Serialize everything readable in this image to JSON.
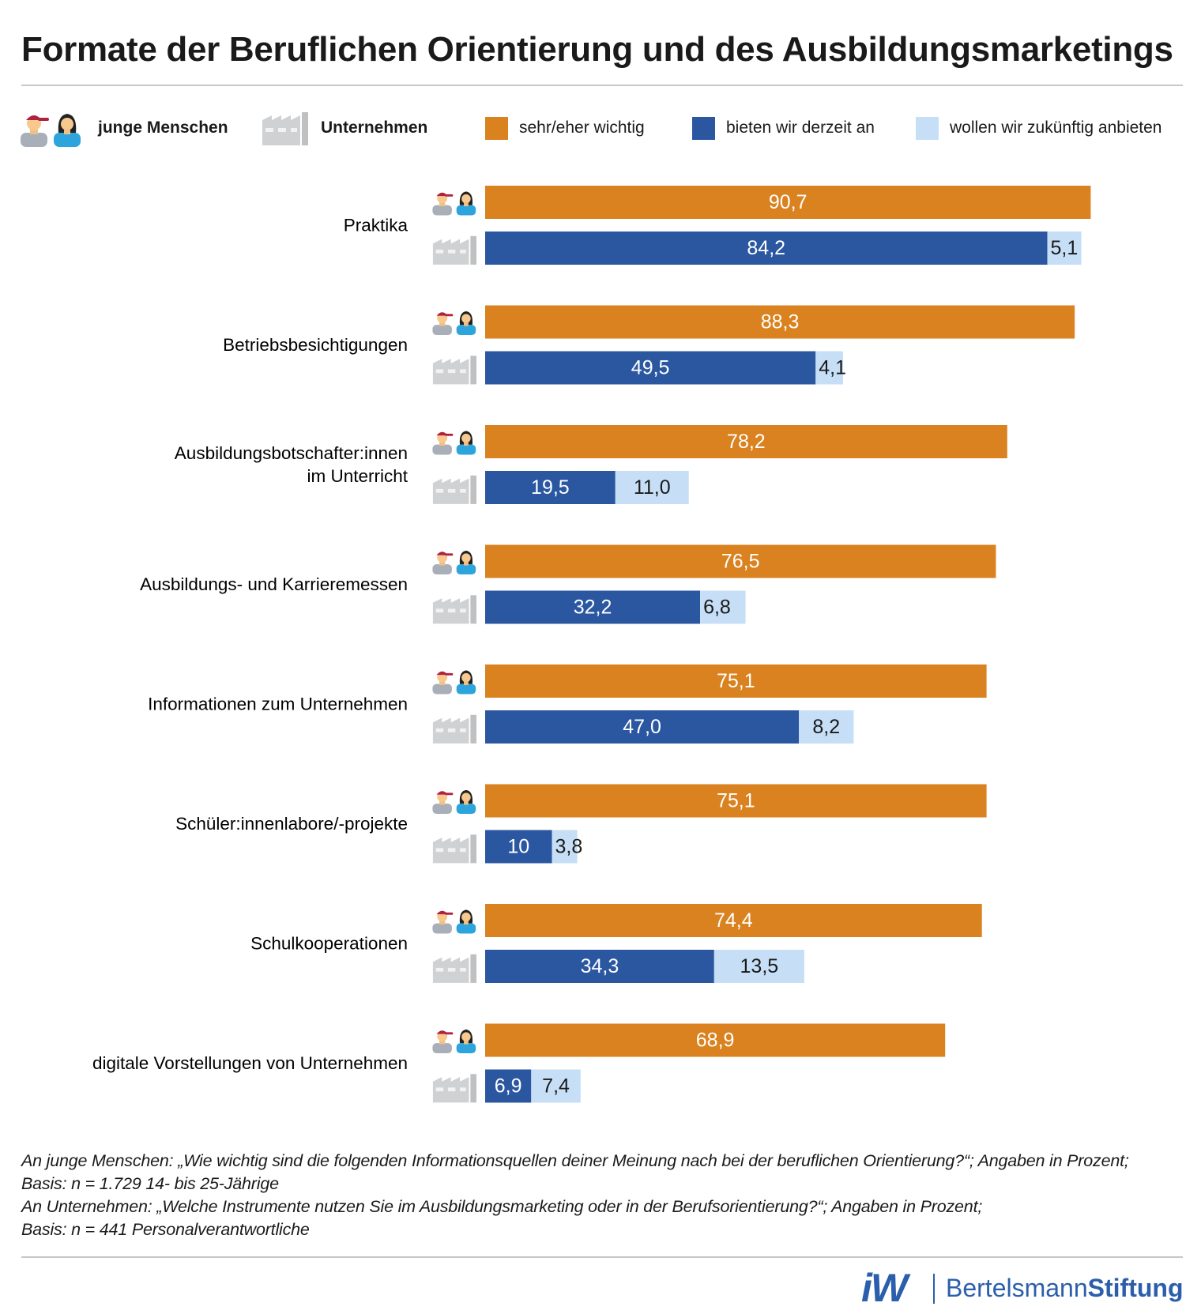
{
  "title": "Formate der Beruflichen Orientierung und des Ausbildungsmarketings",
  "legend": {
    "young": "junge Menschen",
    "companies": "Unternehmen",
    "important": "sehr/eher wichtig",
    "current": "bieten wir derzeit an",
    "future": "wollen wir zukünftig anbieten"
  },
  "colors": {
    "important": "#d9821f",
    "current": "#2b57a1",
    "future": "#c6dff6",
    "icon_gray": "#c9cacc"
  },
  "chart_data": {
    "type": "bar",
    "orientation": "horizontal",
    "unit": "Prozent",
    "categories": [
      "Praktika",
      "Betriebsbesichtigungen",
      "Ausbildungsbotschafter:innen im Unterricht",
      "Ausbildungs- und Karrieremessen",
      "Informationen zum Unternehmen",
      "Schüler:innenlabore/-projekte",
      "Schulkooperationen",
      "digitale Vorstellungen von Unternehmen"
    ],
    "category_lines": [
      [
        "Praktika"
      ],
      [
        "Betriebsbesichtigungen"
      ],
      [
        "Ausbildungsbotschafter:innen",
        "im Unterricht"
      ],
      [
        "Ausbildungs- und Karrieremessen"
      ],
      [
        "Informationen zum Unternehmen"
      ],
      [
        "Schüler:innenlabore/-projekte"
      ],
      [
        "Schulkooperationen"
      ],
      [
        "digitale Vorstellungen von Unternehmen"
      ]
    ],
    "series": [
      {
        "name": "sehr/eher wichtig",
        "group": "junge Menschen",
        "values": [
          90.7,
          88.3,
          78.2,
          76.5,
          75.1,
          75.1,
          74.4,
          68.9
        ],
        "labels": [
          "90,7",
          "88,3",
          "78,2",
          "76,5",
          "75,1",
          "75,1",
          "74,4",
          "68,9"
        ]
      },
      {
        "name": "bieten wir derzeit an",
        "group": "Unternehmen",
        "values": [
          84.2,
          49.5,
          19.5,
          32.2,
          47.0,
          10,
          34.3,
          6.9
        ],
        "labels": [
          "84,2",
          "49,5",
          "19,5",
          "32,2",
          "47,0",
          "10",
          "34,3",
          "6,9"
        ]
      },
      {
        "name": "wollen wir zukünftig anbieten",
        "group": "Unternehmen",
        "stacked_on": "bieten wir derzeit an",
        "values": [
          5.1,
          4.1,
          11.0,
          6.8,
          8.2,
          3.8,
          13.5,
          7.4
        ],
        "labels": [
          "5,1",
          "4,1",
          "11,0",
          "6,8",
          "8,2",
          "3,8",
          "13,5",
          "7,4"
        ]
      }
    ],
    "xlim": [
      0,
      100
    ]
  },
  "notes": [
    "An junge Menschen: „Wie wichtig sind die folgenden Informationsquellen deiner Meinung nach bei der beruflichen Orientierung?“; Angaben in Prozent;",
    "Basis: n = 1.729 14- bis 25-Jährige",
    "An Unternehmen: „Welche Instrumente nutzen Sie im Ausbildungsmarketing oder in der Berufsorientierung?“; Angaben in Prozent;",
    "Basis: n = 441 Personalverantwortliche"
  ],
  "logos": {
    "iw": "iW",
    "bertelsmann_regular": "Bertelsmann",
    "bertelsmann_bold": "Stiftung"
  }
}
